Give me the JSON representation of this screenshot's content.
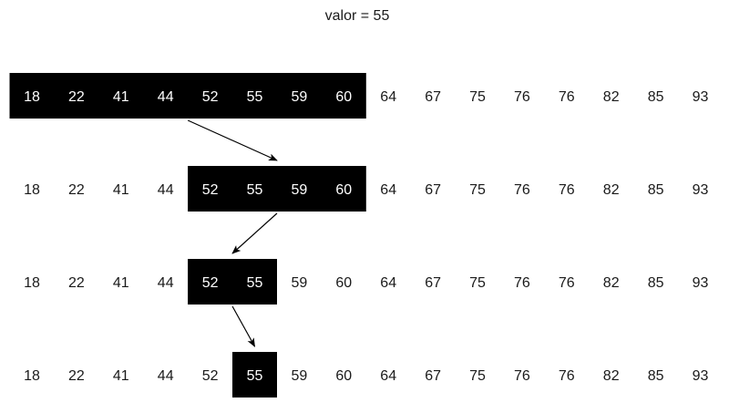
{
  "title": "valor = 55",
  "array": [
    "18",
    "22",
    "41",
    "44",
    "52",
    "55",
    "59",
    "60",
    "64",
    "67",
    "75",
    "76",
    "76",
    "82",
    "85",
    "93"
  ],
  "rows": [
    {
      "highlight_start": 0,
      "highlight_end": 7
    },
    {
      "highlight_start": 4,
      "highlight_end": 7
    },
    {
      "highlight_start": 4,
      "highlight_end": 5
    },
    {
      "highlight_start": 5,
      "highlight_end": 5
    }
  ],
  "colors": {
    "highlight_fill": "#000000",
    "highlight_text": "#ffffff",
    "text": "#1a1a1a",
    "arrow": "#000000"
  }
}
